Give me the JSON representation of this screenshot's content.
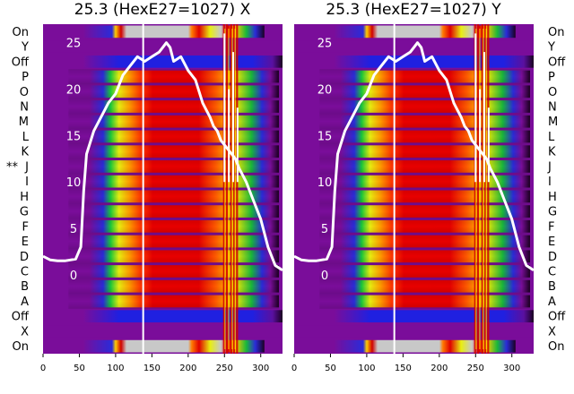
{
  "chart_data": [
    {
      "type": "heatmap",
      "title": "25.3 (HexE27=1027) X",
      "row_labels": [
        "On",
        "Y",
        "Off",
        "P",
        "O",
        "N",
        "M",
        "L",
        "K",
        "J",
        "I",
        "H",
        "G",
        "F",
        "E",
        "D",
        "C",
        "B",
        "A",
        "Off",
        "X",
        "On"
      ],
      "row_label_marker": {
        "row": "J",
        "text": "**"
      },
      "row_label_side": "left",
      "x_ticks": [
        0,
        50,
        100,
        150,
        200,
        250,
        300
      ],
      "xlim": [
        0,
        330
      ],
      "overlay_y_ticks": [
        25,
        20,
        15,
        10,
        5,
        0
      ],
      "overlay_ylim": [
        -8.5,
        27
      ],
      "overlay_curve": {
        "x": [
          0,
          10,
          20,
          30,
          45,
          52,
          56,
          60,
          70,
          80,
          90,
          100,
          110,
          120,
          130,
          140,
          150,
          160,
          165,
          170,
          175,
          180,
          190,
          200,
          210,
          220,
          230,
          235,
          240,
          245,
          250,
          255,
          260,
          265,
          270,
          280,
          290,
          300,
          310,
          320,
          330
        ],
        "y": [
          2,
          1.6,
          1.5,
          1.5,
          1.7,
          3,
          9,
          13,
          15.5,
          17,
          18.5,
          19.5,
          21.5,
          22.5,
          23.5,
          23,
          23.5,
          24,
          24.5,
          25,
          24.5,
          23,
          23.5,
          22,
          21,
          18.5,
          17,
          16,
          15.5,
          14.5,
          14,
          13.5,
          13,
          12.5,
          11.5,
          10,
          8,
          6,
          3,
          1,
          0.5
        ]
      }
    },
    {
      "type": "heatmap",
      "title": "25.3 (HexE27=1027) Y",
      "row_labels": [
        "On",
        "Y",
        "Off",
        "P",
        "O",
        "N",
        "M",
        "L",
        "K",
        "J",
        "I",
        "H",
        "G",
        "F",
        "E",
        "D",
        "C",
        "B",
        "A",
        "Off",
        "X",
        "On"
      ],
      "row_label_side": "right",
      "x_ticks": [
        0,
        50,
        100,
        150,
        200,
        250,
        300
      ],
      "xlim": [
        0,
        330
      ],
      "overlay_y_ticks": [
        25,
        20,
        15,
        10,
        5,
        0
      ],
      "overlay_ylim": [
        -8.5,
        27
      ],
      "overlay_curve": {
        "x": [
          0,
          10,
          20,
          30,
          45,
          52,
          56,
          60,
          70,
          80,
          90,
          100,
          110,
          120,
          130,
          140,
          150,
          160,
          165,
          170,
          175,
          180,
          190,
          200,
          210,
          220,
          230,
          235,
          240,
          245,
          250,
          255,
          260,
          265,
          270,
          280,
          290,
          300,
          310,
          320,
          330
        ],
        "y": [
          2,
          1.6,
          1.5,
          1.5,
          1.7,
          3,
          9,
          13,
          15.5,
          17,
          18.5,
          19.5,
          21.5,
          22.5,
          23.5,
          23,
          23.5,
          24,
          24.5,
          25,
          24.5,
          23,
          23.5,
          22,
          21,
          18.5,
          17,
          16,
          15.5,
          14.5,
          14,
          13.5,
          13,
          12.5,
          11.5,
          10,
          8,
          6,
          3,
          1,
          0.5
        ]
      }
    }
  ]
}
